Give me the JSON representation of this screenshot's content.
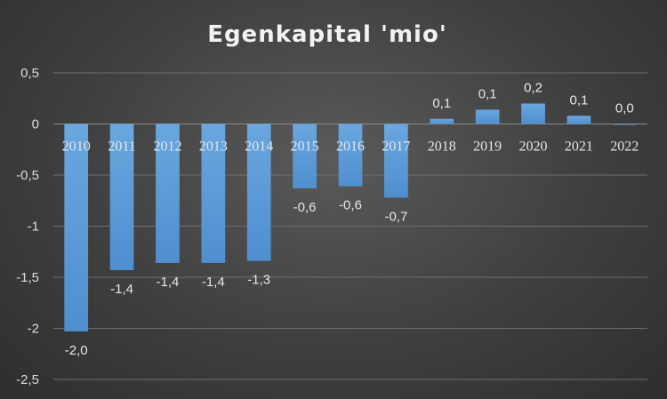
{
  "chart_data": {
    "type": "bar",
    "title": "Egenkapital 'mio'",
    "xlabel": "",
    "ylabel": "",
    "categories": [
      "2010",
      "2011",
      "2012",
      "2013",
      "2014",
      "2015",
      "2016",
      "2017",
      "2018",
      "2019",
      "2020",
      "2021",
      "2022"
    ],
    "values": [
      -2.03,
      -1.43,
      -1.36,
      -1.36,
      -1.34,
      -0.63,
      -0.61,
      -0.72,
      0.05,
      0.14,
      0.2,
      0.08,
      0.0
    ],
    "data_labels": [
      "-2,0",
      "-1,4",
      "-1,4",
      "-1,4",
      "-1,3",
      "-0,6",
      "-0,6",
      "-0,7",
      "0,1",
      "0,1",
      "0,2",
      "0,1",
      "0,0"
    ],
    "ylim": [
      -2.5,
      0.5
    ],
    "y_ticks": [
      0.5,
      0,
      -0.5,
      -1,
      -1.5,
      -2,
      -2.5
    ],
    "y_tick_labels": [
      "0,5",
      "0",
      "-0,5",
      "-1",
      "-1,5",
      "-2",
      "-2,5"
    ],
    "grid": true,
    "legend": "none",
    "bar_color": "#5b9bd5"
  }
}
